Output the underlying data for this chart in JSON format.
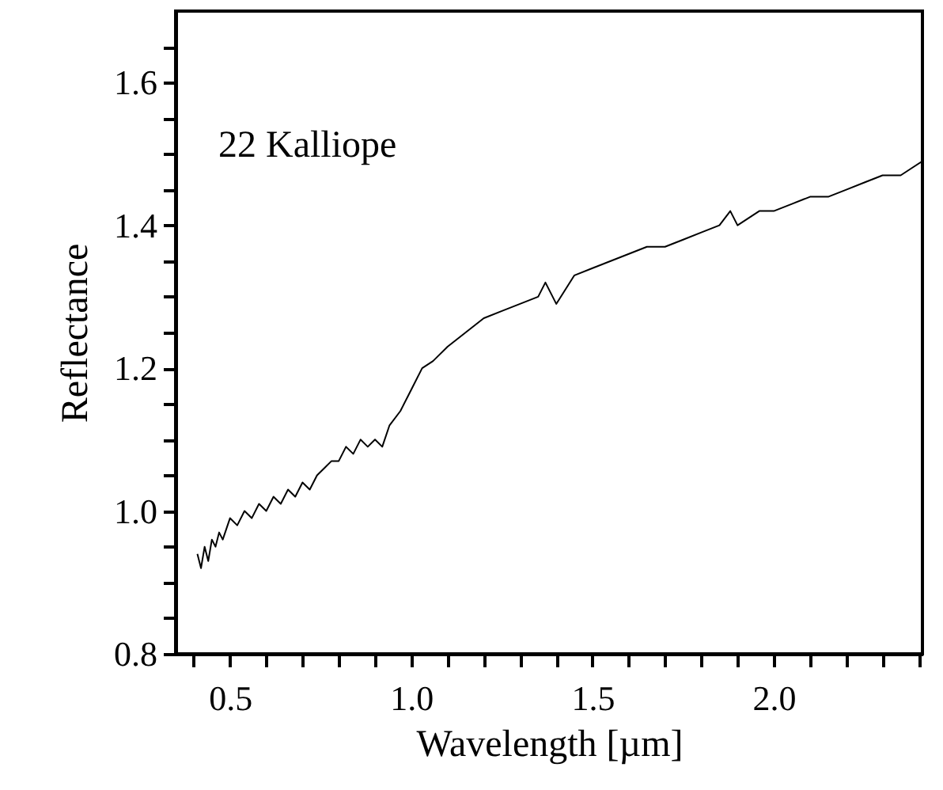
{
  "chart_data": {
    "type": "line",
    "xlabel": "Wavelength [µm]",
    "ylabel": "Reflectance",
    "annotations": [
      "22 Kalliope"
    ],
    "xlim": [
      0.35,
      2.41
    ],
    "ylim": [
      0.8,
      1.7
    ],
    "xticks": [
      {
        "value": 0.4,
        "label": null
      },
      0.5,
      {
        "value": 0.6,
        "label": null
      },
      {
        "value": 0.7,
        "label": null
      },
      {
        "value": 0.8,
        "label": null
      },
      {
        "value": 0.9,
        "label": null
      },
      {
        "value": 1.0,
        "label": "1.0"
      },
      {
        "value": 1.1,
        "label": null
      },
      {
        "value": 1.2,
        "label": null
      },
      {
        "value": 1.3,
        "label": null
      },
      {
        "value": 1.4,
        "label": null
      },
      1.5,
      {
        "value": 1.6,
        "label": null
      },
      {
        "value": 1.7,
        "label": null
      },
      {
        "value": 1.8,
        "label": null
      },
      {
        "value": 1.9,
        "label": null
      },
      {
        "value": 2.0,
        "label": "2.0"
      },
      {
        "value": 2.1,
        "label": null
      },
      {
        "value": 2.2,
        "label": null
      },
      {
        "value": 2.3,
        "label": null
      },
      {
        "value": 2.4,
        "label": null
      }
    ],
    "yticks": [
      0.8,
      {
        "value": 0.85,
        "label": null
      },
      {
        "value": 0.9,
        "label": null
      },
      {
        "value": 0.95,
        "label": null
      },
      {
        "value": 1.0,
        "label": "1.0"
      },
      {
        "value": 1.05,
        "label": null
      },
      {
        "value": 1.1,
        "label": null
      },
      {
        "value": 1.15,
        "label": null
      },
      1.2,
      {
        "value": 1.25,
        "label": null
      },
      {
        "value": 1.3,
        "label": null
      },
      {
        "value": 1.35,
        "label": null
      },
      1.4,
      {
        "value": 1.45,
        "label": null
      },
      {
        "value": 1.5,
        "label": null
      },
      {
        "value": 1.55,
        "label": null
      },
      1.6,
      {
        "value": 1.65,
        "label": null
      }
    ],
    "grid": false,
    "marker": "none",
    "line_style": "solid",
    "series": [
      {
        "color": "#000000",
        "x": [
          0.41,
          0.42,
          0.43,
          0.44,
          0.45,
          0.46,
          0.47,
          0.48,
          0.5,
          0.52,
          0.54,
          0.56,
          0.58,
          0.6,
          0.62,
          0.64,
          0.66,
          0.68,
          0.7,
          0.72,
          0.74,
          0.76,
          0.78,
          0.8,
          0.82,
          0.84,
          0.86,
          0.88,
          0.9,
          0.92,
          0.94,
          0.97,
          1.0,
          1.03,
          1.06,
          1.1,
          1.15,
          1.2,
          1.25,
          1.3,
          1.35,
          1.37,
          1.4,
          1.45,
          1.5,
          1.55,
          1.6,
          1.65,
          1.7,
          1.75,
          1.8,
          1.85,
          1.88,
          1.9,
          1.93,
          1.96,
          2.0,
          2.05,
          2.1,
          2.15,
          2.2,
          2.25,
          2.3,
          2.35,
          2.38,
          2.41
        ],
        "values": [
          0.94,
          0.92,
          0.95,
          0.93,
          0.96,
          0.95,
          0.97,
          0.96,
          0.99,
          0.98,
          1.0,
          0.99,
          1.01,
          1.0,
          1.02,
          1.01,
          1.03,
          1.02,
          1.04,
          1.03,
          1.05,
          1.06,
          1.07,
          1.07,
          1.09,
          1.08,
          1.1,
          1.09,
          1.1,
          1.09,
          1.12,
          1.14,
          1.17,
          1.2,
          1.21,
          1.23,
          1.25,
          1.27,
          1.28,
          1.29,
          1.3,
          1.32,
          1.29,
          1.33,
          1.34,
          1.35,
          1.36,
          1.37,
          1.37,
          1.38,
          1.39,
          1.4,
          1.42,
          1.4,
          1.41,
          1.42,
          1.42,
          1.43,
          1.44,
          1.44,
          1.45,
          1.46,
          1.47,
          1.47,
          1.48,
          1.49
        ]
      }
    ]
  }
}
